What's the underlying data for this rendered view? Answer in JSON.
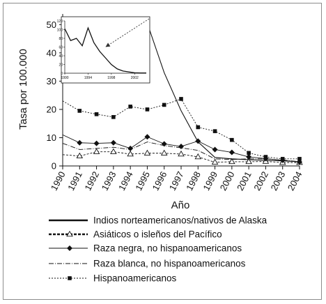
{
  "chart_data": [
    {
      "type": "line",
      "title": "",
      "xlabel": "Año",
      "ylabel": "Tasa por 100.000",
      "categories": [
        "1990",
        "1991",
        "1992",
        "1993",
        "1994",
        "1995",
        "1996",
        "1997",
        "1998",
        "1999",
        "2000",
        "2001",
        "2002",
        "2003",
        "2004"
      ],
      "yticks": [
        "0",
        "10",
        "20",
        "30",
        "40",
        "50"
      ],
      "ylim": [
        0,
        55
      ],
      "grid": false,
      "legend_position": "bottom",
      "series": [
        {
          "name": "Indios norteamericanos/nativos de Alaska",
          "style": "solid-thick",
          "values": [
            null,
            null,
            null,
            null,
            null,
            50.5,
            33,
            19.5,
            8.5,
            3,
            2.5,
            2.2,
            2,
            1.8,
            1.5
          ]
        },
        {
          "name": "Asiáticos o isleños del Pacífico",
          "style": "dashed-triangle",
          "values": [
            4,
            3.5,
            5,
            5,
            4.2,
            4.5,
            4.5,
            4.2,
            3.2,
            1.3,
            1.5,
            1.5,
            1.6,
            1.2,
            1.2
          ]
        },
        {
          "name": "Raza negra, no hispanoamericanos",
          "style": "solid-diamond",
          "values": [
            11,
            8.2,
            8,
            8.2,
            6.2,
            10.3,
            7.8,
            6.9,
            8.8,
            5.8,
            4.8,
            3.2,
            2.6,
            2,
            1.4
          ]
        },
        {
          "name": "Raza blanca, no hispanoamericanos",
          "style": "dashdot",
          "values": [
            8,
            5.8,
            6.2,
            6.6,
            5.8,
            8.5,
            7.2,
            6.4,
            5.5,
            2.5,
            2.3,
            2.5,
            2.5,
            2.1,
            1.5
          ]
        },
        {
          "name": "Hispanoamericanos",
          "style": "dotted-square",
          "values": [
            23,
            19.5,
            18.3,
            17.3,
            21,
            20,
            21.6,
            23.7,
            13.7,
            12.3,
            9.2,
            4.6,
            3.2,
            2.5,
            2.5
          ]
        }
      ]
    },
    {
      "type": "line",
      "title": "",
      "xlabel": "",
      "ylabel": "",
      "x": [
        1990,
        1991,
        1992,
        1993,
        1994,
        1995,
        1996,
        1997,
        1998,
        1999,
        2000,
        2001,
        2002,
        2003,
        2004
      ],
      "xtick_labels": [
        "1990",
        "1994",
        "1998",
        "2002"
      ],
      "ytick_labels": [
        "0",
        "20",
        "40",
        "60",
        "80",
        "100",
        "120"
      ],
      "ylim": [
        0,
        120
      ],
      "series": [
        {
          "name": "Indios norteamericanos/nativos de Alaska",
          "values": [
            102,
            75,
            80,
            63,
            104,
            70,
            50,
            35,
            20,
            10,
            5,
            3,
            1,
            0.5,
            0.5
          ]
        }
      ]
    }
  ]
}
